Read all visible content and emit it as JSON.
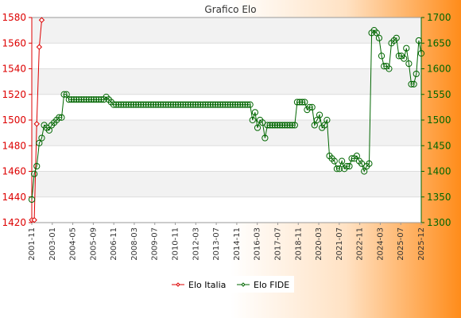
{
  "chart_data": {
    "type": "line",
    "title": "Grafico Elo",
    "y_left": {
      "min": 1420,
      "max": 1580,
      "step": 20,
      "color": "#dd0000"
    },
    "y_right": {
      "min": 1300,
      "max": 1700,
      "step": 50,
      "color": "#006600"
    },
    "grid": "horizontal",
    "legend_position": "bottom-center",
    "x_tick_labels": [
      "2001-11",
      "2003-01",
      "2004-05",
      "2005-09",
      "2006-11",
      "2008-03",
      "2009-07",
      "2010-11",
      "2012-03",
      "2013-07",
      "2014-11",
      "2016-03",
      "2017-07",
      "2018-11",
      "2020-03",
      "2021-07",
      "2022-11",
      "2024-03",
      "2025-07",
      "2025-12"
    ],
    "series": [
      {
        "name": "Elo Italia",
        "axis": "left",
        "color": "#dd0000",
        "marker": "diamond",
        "values": [
          1422,
          1422,
          1497,
          1557,
          1578
        ]
      },
      {
        "name": "Elo FIDE",
        "axis": "right",
        "color": "#006600",
        "marker": "circle",
        "values": [
          1345,
          1395,
          1410,
          1455,
          1465,
          1490,
          1485,
          1480,
          1490,
          1495,
          1500,
          1505,
          1505,
          1550,
          1550,
          1540,
          1540,
          1540,
          1540,
          1540,
          1540,
          1540,
          1540,
          1540,
          1540,
          1540,
          1540,
          1540,
          1540,
          1540,
          1545,
          1540,
          1535,
          1530,
          1530,
          1530,
          1530,
          1530,
          1530,
          1530,
          1530,
          1530,
          1530,
          1530,
          1530,
          1530,
          1530,
          1530,
          1530,
          1530,
          1530,
          1530,
          1530,
          1530,
          1530,
          1530,
          1530,
          1530,
          1530,
          1530,
          1530,
          1530,
          1530,
          1530,
          1530,
          1530,
          1530,
          1530,
          1530,
          1530,
          1530,
          1530,
          1530,
          1530,
          1530,
          1530,
          1530,
          1530,
          1530,
          1530,
          1530,
          1530,
          1530,
          1530,
          1530,
          1530,
          1530,
          1530,
          1530,
          1500,
          1515,
          1485,
          1500,
          1495,
          1465,
          1490,
          1490,
          1490,
          1490,
          1490,
          1490,
          1490,
          1490,
          1490,
          1490,
          1490,
          1490,
          1535,
          1535,
          1535,
          1535,
          1520,
          1525,
          1525,
          1490,
          1500,
          1510,
          1485,
          1490,
          1500,
          1430,
          1425,
          1420,
          1405,
          1405,
          1420,
          1405,
          1410,
          1410,
          1425,
          1425,
          1430,
          1420,
          1415,
          1400,
          1410,
          1415,
          1670,
          1675,
          1670,
          1660,
          1625,
          1605,
          1605,
          1600,
          1650,
          1655,
          1660,
          1625,
          1625,
          1620,
          1640,
          1610,
          1570,
          1570,
          1590,
          1655,
          1630
        ]
      }
    ]
  }
}
